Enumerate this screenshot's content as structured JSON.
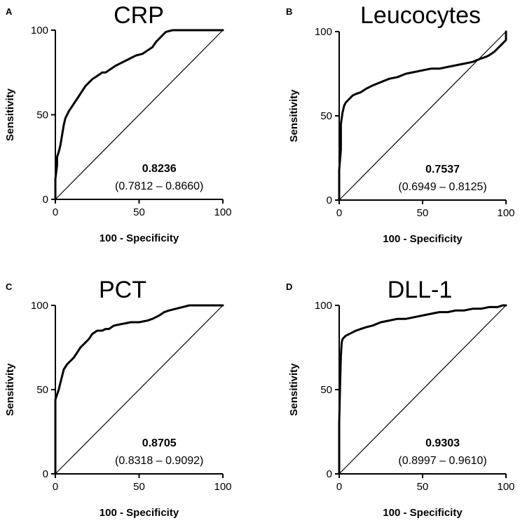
{
  "chart_data": [
    {
      "type": "line",
      "panel": "A",
      "title": "CRP",
      "xlabel": "100 - Specificity",
      "ylabel": "Sensitivity",
      "xlim": [
        0,
        100
      ],
      "ylim": [
        0,
        100
      ],
      "x_ticks": [
        "0",
        "50",
        "100"
      ],
      "y_ticks": [
        "0",
        "50",
        "100"
      ],
      "auc": "0.8236",
      "ci": "(0.7812 – 0.8660)",
      "series": [
        {
          "name": "ROC",
          "x": [
            0,
            0,
            1,
            1,
            2,
            3,
            4,
            5,
            6,
            8,
            10,
            12,
            14,
            16,
            18,
            20,
            22,
            25,
            28,
            30,
            33,
            36,
            40,
            44,
            48,
            52,
            55,
            58,
            60,
            63,
            66,
            70,
            80,
            100
          ],
          "y": [
            0,
            12,
            20,
            25,
            28,
            32,
            38,
            44,
            48,
            52,
            55,
            58,
            61,
            64,
            67,
            69,
            71,
            73,
            75,
            75,
            77,
            79,
            81,
            83,
            85,
            86,
            88,
            90,
            93,
            96,
            99,
            100,
            100,
            100
          ]
        },
        {
          "name": "Reference",
          "x": [
            0,
            100
          ],
          "y": [
            0,
            100
          ]
        }
      ]
    },
    {
      "type": "line",
      "panel": "B",
      "title": "Leucocytes",
      "xlabel": "100 - Specificity",
      "ylabel": "Sensitivity",
      "xlim": [
        0,
        100
      ],
      "ylim": [
        0,
        100
      ],
      "x_ticks": [
        "0",
        "50",
        "100"
      ],
      "y_ticks": [
        "0",
        "50",
        "100"
      ],
      "auc": "0.7537",
      "ci": "(0.6949 – 0.8125)",
      "series": [
        {
          "name": "ROC",
          "x": [
            0,
            0,
            1,
            1,
            2,
            3,
            4,
            6,
            8,
            10,
            13,
            16,
            20,
            25,
            30,
            35,
            40,
            45,
            50,
            55,
            60,
            65,
            70,
            75,
            80,
            85,
            88,
            90,
            93,
            95,
            97,
            99,
            100,
            100
          ],
          "y": [
            0,
            18,
            30,
            45,
            52,
            56,
            58,
            60,
            62,
            63,
            64,
            66,
            68,
            70,
            72,
            73,
            75,
            76,
            77,
            78,
            78,
            79,
            80,
            81,
            82,
            84,
            85,
            86,
            88,
            90,
            92,
            94,
            95,
            100
          ]
        },
        {
          "name": "Reference",
          "x": [
            0,
            100
          ],
          "y": [
            0,
            100
          ]
        }
      ]
    },
    {
      "type": "line",
      "panel": "C",
      "title": "PCT",
      "xlabel": "100 - Specificity",
      "ylabel": "Sensitivity",
      "xlim": [
        0,
        100
      ],
      "ylim": [
        0,
        100
      ],
      "x_ticks": [
        "0",
        "50",
        "100"
      ],
      "y_ticks": [
        "0",
        "50",
        "100"
      ],
      "auc": "0.8705",
      "ci": "(0.8318 – 0.9092)",
      "series": [
        {
          "name": "ROC",
          "x": [
            0,
            0,
            1,
            2,
            3,
            4,
            5,
            7,
            9,
            11,
            13,
            15,
            18,
            20,
            22,
            25,
            28,
            30,
            32,
            35,
            40,
            45,
            50,
            55,
            58,
            60,
            62,
            65,
            68,
            72,
            76,
            80,
            100
          ],
          "y": [
            0,
            44,
            47,
            50,
            54,
            58,
            62,
            65,
            67,
            69,
            72,
            75,
            78,
            80,
            83,
            85,
            85,
            86,
            86,
            88,
            89,
            90,
            90,
            91,
            92,
            93,
            94,
            96,
            97,
            98,
            99,
            100,
            100
          ]
        },
        {
          "name": "Reference",
          "x": [
            0,
            100
          ],
          "y": [
            0,
            100
          ]
        }
      ]
    },
    {
      "type": "line",
      "panel": "D",
      "title": "DLL-1",
      "xlabel": "100 - Specificity",
      "ylabel": "Sensitivity",
      "xlim": [
        0,
        100
      ],
      "ylim": [
        0,
        100
      ],
      "x_ticks": [
        "0",
        "50",
        "100"
      ],
      "y_ticks": [
        "0",
        "50",
        "100"
      ],
      "auc": "0.9303",
      "ci": "(0.8997 – 0.9610)",
      "series": [
        {
          "name": "ROC",
          "x": [
            0,
            0,
            0.5,
            1,
            1.5,
            2,
            3,
            4,
            6,
            8,
            10,
            13,
            16,
            20,
            25,
            30,
            35,
            40,
            45,
            50,
            55,
            60,
            65,
            70,
            75,
            80,
            85,
            90,
            95,
            98,
            100
          ],
          "y": [
            0,
            30,
            52,
            70,
            78,
            80,
            81,
            82,
            83,
            84,
            85,
            86,
            87,
            88,
            90,
            91,
            92,
            92,
            93,
            94,
            95,
            96,
            96,
            97,
            97,
            98,
            98,
            99,
            99,
            100,
            100
          ]
        },
        {
          "name": "Reference",
          "x": [
            0,
            100
          ],
          "y": [
            0,
            100
          ]
        }
      ]
    }
  ]
}
